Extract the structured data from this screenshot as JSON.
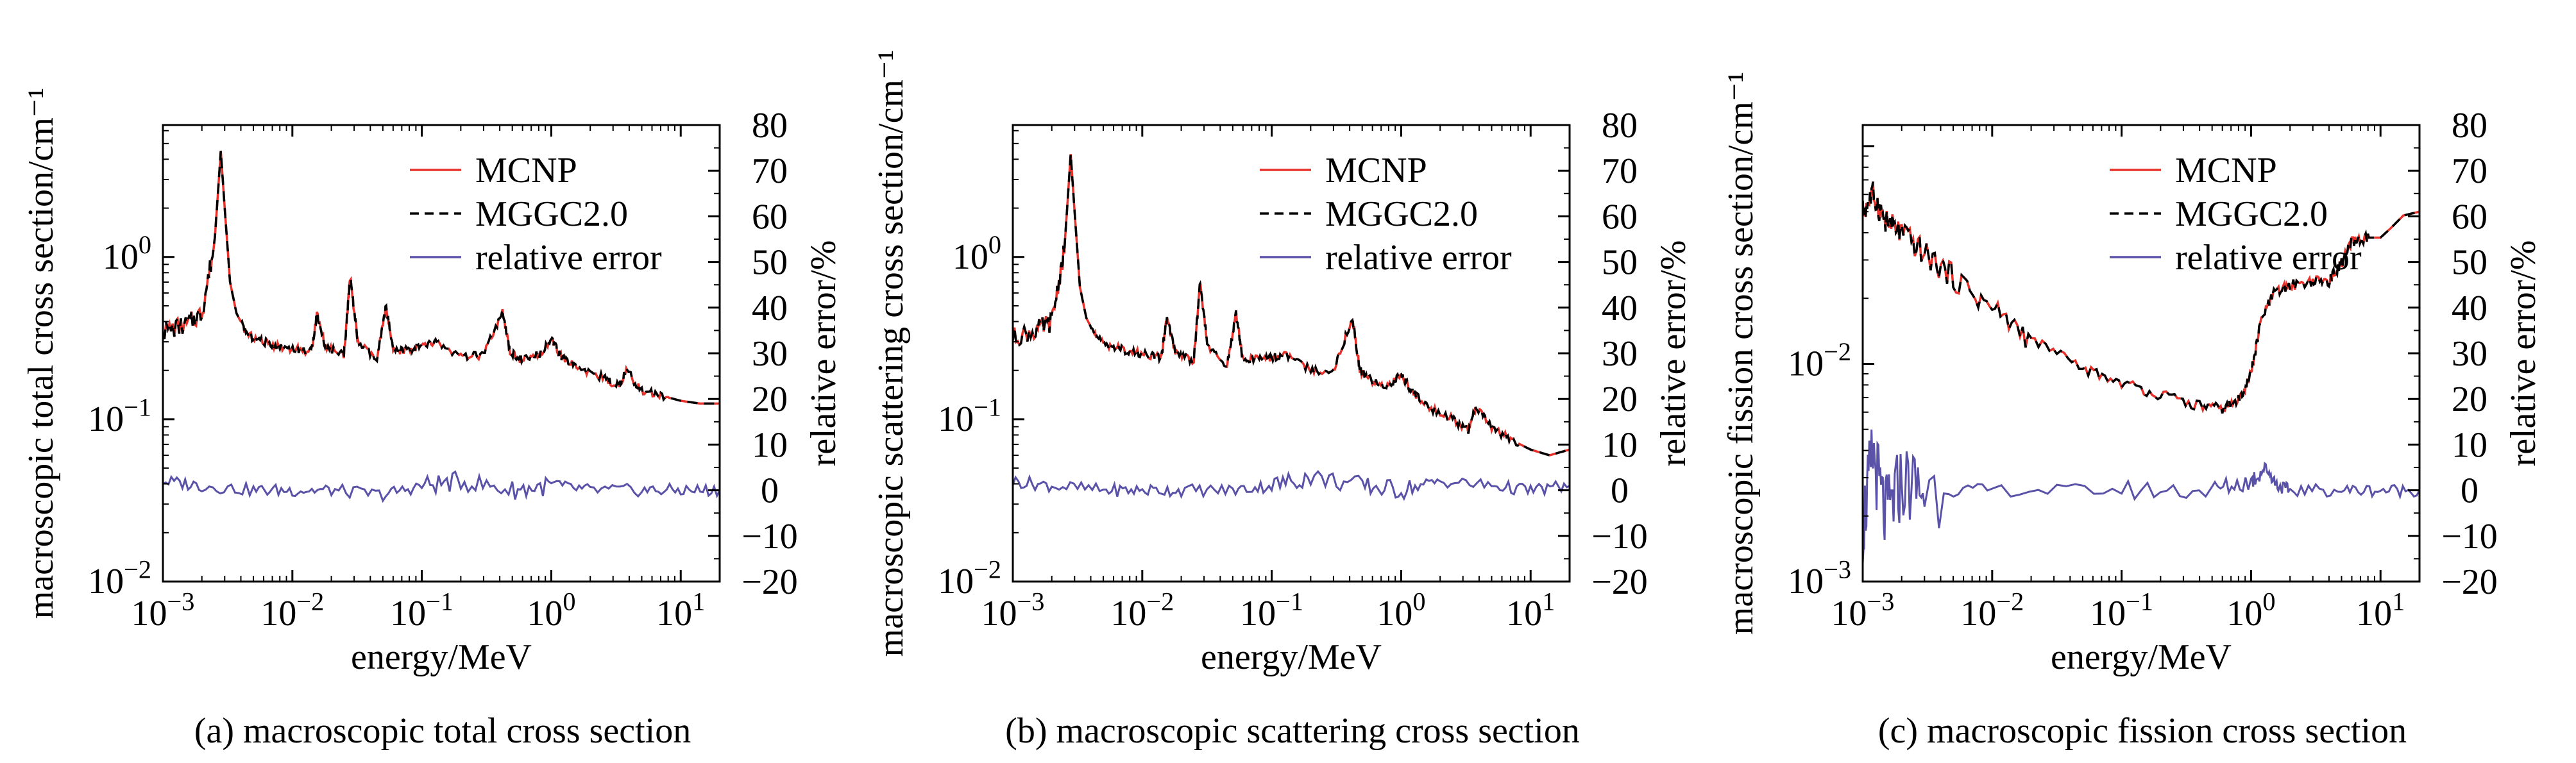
{
  "figure": {
    "captions": [
      "(a) macroscopic total cross section",
      "(b) macroscopic scattering cross section",
      "(c) macroscopic fission cross section"
    ]
  },
  "colors": {
    "mcnp": "#e8312a",
    "mggc": "#000000",
    "error": "#5a52a8",
    "axis": "#000000"
  },
  "chart_data": [
    {
      "type": "line",
      "title": "",
      "xlabel": "energy/MeV",
      "ylabel": "macroscopic total cross section/cm⁻¹",
      "y2label": "relative error/%",
      "xscale": "log",
      "yscale": "log",
      "xlim": [
        0.001,
        20
      ],
      "ylim": [
        0.01,
        6.5
      ],
      "y2lim": [
        -20,
        80
      ],
      "xticks": [
        "10⁻³",
        "10⁻²",
        "10⁻¹",
        "10⁰",
        "10¹"
      ],
      "yticks": [
        "10⁻²",
        "10⁻¹",
        "10⁰"
      ],
      "y2ticks": [
        "−20",
        "−10",
        "0",
        "10",
        "20",
        "30",
        "40",
        "50",
        "60",
        "70",
        "80"
      ],
      "legend": {
        "position": "top-right",
        "entries": [
          "MCNP",
          "MGGC2.0",
          "relative error"
        ]
      },
      "series": [
        {
          "name": "MCNP",
          "axis": "left",
          "style": "solid",
          "x": [
            0.001,
            0.0015,
            0.002,
            0.0025,
            0.0028,
            0.003,
            0.0033,
            0.0037,
            0.0045,
            0.006,
            0.008,
            0.011,
            0.014,
            0.0155,
            0.018,
            0.025,
            0.028,
            0.032,
            0.045,
            0.053,
            0.06,
            0.08,
            0.1,
            0.13,
            0.2,
            0.3,
            0.42,
            0.48,
            0.6,
            0.8,
            1.0,
            1.2,
            1.6,
            2.5,
            3.3,
            3.8,
            5,
            7,
            10,
            14,
            20
          ],
          "y": [
            0.35,
            0.38,
            0.45,
            1.2,
            4.5,
            2.0,
            0.7,
            0.45,
            0.33,
            0.3,
            0.28,
            0.27,
            0.26,
            0.45,
            0.28,
            0.25,
            0.75,
            0.3,
            0.23,
            0.5,
            0.26,
            0.27,
            0.28,
            0.3,
            0.24,
            0.25,
            0.45,
            0.26,
            0.23,
            0.25,
            0.31,
            0.24,
            0.21,
            0.18,
            0.16,
            0.2,
            0.15,
            0.14,
            0.13,
            0.125,
            0.125
          ]
        },
        {
          "name": "MGGC2.0",
          "axis": "left",
          "style": "dashed",
          "x": [
            0.001,
            0.0015,
            0.002,
            0.0025,
            0.0028,
            0.003,
            0.0033,
            0.0037,
            0.0045,
            0.006,
            0.008,
            0.011,
            0.014,
            0.0155,
            0.018,
            0.025,
            0.028,
            0.032,
            0.045,
            0.053,
            0.06,
            0.08,
            0.1,
            0.13,
            0.2,
            0.3,
            0.42,
            0.48,
            0.6,
            0.8,
            1.0,
            1.2,
            1.6,
            2.5,
            3.3,
            3.8,
            5,
            7,
            10,
            14,
            20
          ],
          "y": [
            0.35,
            0.38,
            0.45,
            1.2,
            4.5,
            2.0,
            0.7,
            0.45,
            0.33,
            0.3,
            0.28,
            0.27,
            0.26,
            0.45,
            0.28,
            0.25,
            0.75,
            0.3,
            0.23,
            0.5,
            0.26,
            0.27,
            0.28,
            0.3,
            0.24,
            0.25,
            0.45,
            0.26,
            0.23,
            0.25,
            0.31,
            0.24,
            0.21,
            0.18,
            0.16,
            0.2,
            0.15,
            0.14,
            0.13,
            0.125,
            0.125
          ]
        },
        {
          "name": "relative error",
          "axis": "right",
          "style": "solid",
          "x": [
            0.001,
            0.002,
            0.005,
            0.01,
            0.02,
            0.05,
            0.1,
            0.2,
            0.5,
            1,
            2,
            5,
            10,
            20
          ],
          "y": [
            2,
            1,
            0,
            0,
            0,
            -1,
            1,
            2,
            0,
            1,
            0,
            0,
            0,
            0
          ]
        }
      ]
    },
    {
      "type": "line",
      "title": "",
      "xlabel": "energy/MeV",
      "ylabel": "macroscopic scattering cross section/cm⁻¹",
      "y2label": "relative error/%",
      "xscale": "log",
      "yscale": "log",
      "xlim": [
        0.001,
        20
      ],
      "ylim": [
        0.01,
        6.5
      ],
      "y2lim": [
        -20,
        80
      ],
      "xticks": [
        "10⁻³",
        "10⁻²",
        "10⁻¹",
        "10⁰",
        "10¹"
      ],
      "yticks": [
        "10⁻²",
        "10⁻¹",
        "10⁰"
      ],
      "y2ticks": [
        "−20",
        "−10",
        "0",
        "10",
        "20",
        "30",
        "40",
        "50",
        "60",
        "70",
        "80"
      ],
      "legend": {
        "position": "top-right",
        "entries": [
          "MCNP",
          "MGGC2.0",
          "relative error"
        ]
      },
      "series": [
        {
          "name": "MCNP",
          "axis": "left",
          "style": "solid",
          "x": [
            0.001,
            0.0015,
            0.002,
            0.0025,
            0.0028,
            0.003,
            0.0033,
            0.0037,
            0.0045,
            0.006,
            0.008,
            0.011,
            0.014,
            0.0155,
            0.018,
            0.025,
            0.028,
            0.032,
            0.045,
            0.053,
            0.06,
            0.08,
            0.1,
            0.13,
            0.2,
            0.3,
            0.42,
            0.48,
            0.6,
            0.8,
            1.0,
            1.2,
            1.6,
            2.5,
            3.3,
            3.8,
            5,
            7,
            10,
            14,
            20
          ],
          "y": [
            0.32,
            0.35,
            0.4,
            1.1,
            4.3,
            1.9,
            0.65,
            0.42,
            0.31,
            0.28,
            0.26,
            0.25,
            0.24,
            0.42,
            0.26,
            0.23,
            0.7,
            0.28,
            0.21,
            0.45,
            0.23,
            0.24,
            0.24,
            0.25,
            0.2,
            0.2,
            0.42,
            0.2,
            0.17,
            0.16,
            0.19,
            0.15,
            0.12,
            0.1,
            0.085,
            0.12,
            0.09,
            0.075,
            0.065,
            0.06,
            0.065
          ]
        },
        {
          "name": "MGGC2.0",
          "axis": "left",
          "style": "dashed",
          "x": [
            0.001,
            0.0015,
            0.002,
            0.0025,
            0.0028,
            0.003,
            0.0033,
            0.0037,
            0.0045,
            0.006,
            0.008,
            0.011,
            0.014,
            0.0155,
            0.018,
            0.025,
            0.028,
            0.032,
            0.045,
            0.053,
            0.06,
            0.08,
            0.1,
            0.13,
            0.2,
            0.3,
            0.42,
            0.48,
            0.6,
            0.8,
            1.0,
            1.2,
            1.6,
            2.5,
            3.3,
            3.8,
            5,
            7,
            10,
            14,
            20
          ],
          "y": [
            0.32,
            0.35,
            0.4,
            1.1,
            4.3,
            1.9,
            0.65,
            0.42,
            0.31,
            0.28,
            0.26,
            0.25,
            0.24,
            0.42,
            0.26,
            0.23,
            0.7,
            0.28,
            0.21,
            0.45,
            0.23,
            0.24,
            0.24,
            0.25,
            0.2,
            0.2,
            0.42,
            0.2,
            0.17,
            0.16,
            0.19,
            0.15,
            0.12,
            0.1,
            0.085,
            0.12,
            0.09,
            0.075,
            0.065,
            0.06,
            0.065
          ]
        },
        {
          "name": "relative error",
          "axis": "right",
          "style": "solid",
          "x": [
            0.001,
            0.002,
            0.005,
            0.01,
            0.02,
            0.05,
            0.1,
            0.2,
            0.5,
            1,
            2,
            5,
            10,
            20
          ],
          "y": [
            2,
            1,
            0,
            0,
            0,
            0,
            1,
            3,
            1,
            0,
            2,
            1,
            0,
            1
          ]
        }
      ]
    },
    {
      "type": "line",
      "title": "",
      "xlabel": "energy/MeV",
      "ylabel": "macroscopic fission cross section/cm⁻¹",
      "y2label": "relative error/%",
      "xscale": "log",
      "yscale": "log",
      "xlim": [
        0.001,
        20
      ],
      "ylim": [
        0.001,
        0.125
      ],
      "y2lim": [
        -20,
        80
      ],
      "xticks": [
        "10⁻³",
        "10⁻²",
        "10⁻¹",
        "10⁰",
        "10¹"
      ],
      "yticks": [
        "10⁻³",
        "10⁻²"
      ],
      "y2ticks": [
        "−20",
        "−10",
        "0",
        "10",
        "20",
        "30",
        "40",
        "50",
        "60",
        "70",
        "80"
      ],
      "legend": {
        "position": "top-right",
        "entries": [
          "MCNP",
          "MGGC2.0",
          "relative error"
        ]
      },
      "series": [
        {
          "name": "MCNP",
          "axis": "left",
          "style": "solid",
          "x": [
            0.001,
            0.0012,
            0.0015,
            0.002,
            0.003,
            0.005,
            0.01,
            0.02,
            0.05,
            0.1,
            0.2,
            0.4,
            0.6,
            0.8,
            1.0,
            1.2,
            1.5,
            2.0,
            3.0,
            4.0,
            5.0,
            6.0,
            8.0,
            10,
            12,
            15,
            20
          ],
          "y": [
            0.05,
            0.06,
            0.045,
            0.04,
            0.032,
            0.025,
            0.018,
            0.013,
            0.0095,
            0.0082,
            0.0072,
            0.0064,
            0.0062,
            0.0068,
            0.009,
            0.016,
            0.021,
            0.023,
            0.024,
            0.024,
            0.029,
            0.036,
            0.038,
            0.038,
            0.042,
            0.048,
            0.05
          ]
        },
        {
          "name": "MGGC2.0",
          "axis": "left",
          "style": "dashed",
          "x": [
            0.001,
            0.0012,
            0.0015,
            0.002,
            0.003,
            0.005,
            0.01,
            0.02,
            0.05,
            0.1,
            0.2,
            0.4,
            0.6,
            0.8,
            1.0,
            1.2,
            1.5,
            2.0,
            3.0,
            4.0,
            5.0,
            6.0,
            8.0,
            10,
            12,
            15,
            20
          ],
          "y": [
            0.05,
            0.06,
            0.045,
            0.04,
            0.032,
            0.025,
            0.018,
            0.013,
            0.0095,
            0.0082,
            0.0072,
            0.0064,
            0.0062,
            0.0068,
            0.009,
            0.016,
            0.021,
            0.023,
            0.024,
            0.024,
            0.029,
            0.036,
            0.038,
            0.038,
            0.042,
            0.048,
            0.05
          ]
        },
        {
          "name": "relative error",
          "axis": "right",
          "style": "solid",
          "x": [
            0.001,
            0.0012,
            0.0015,
            0.002,
            0.003,
            0.01,
            0.1,
            0.5,
            1.0,
            1.3,
            1.6,
            2.0,
            5.0,
            10,
            20
          ],
          "y": [
            -8,
            8,
            -6,
            2,
            0,
            0,
            0,
            0,
            2,
            5,
            1,
            0,
            0,
            0,
            0
          ]
        }
      ]
    }
  ]
}
